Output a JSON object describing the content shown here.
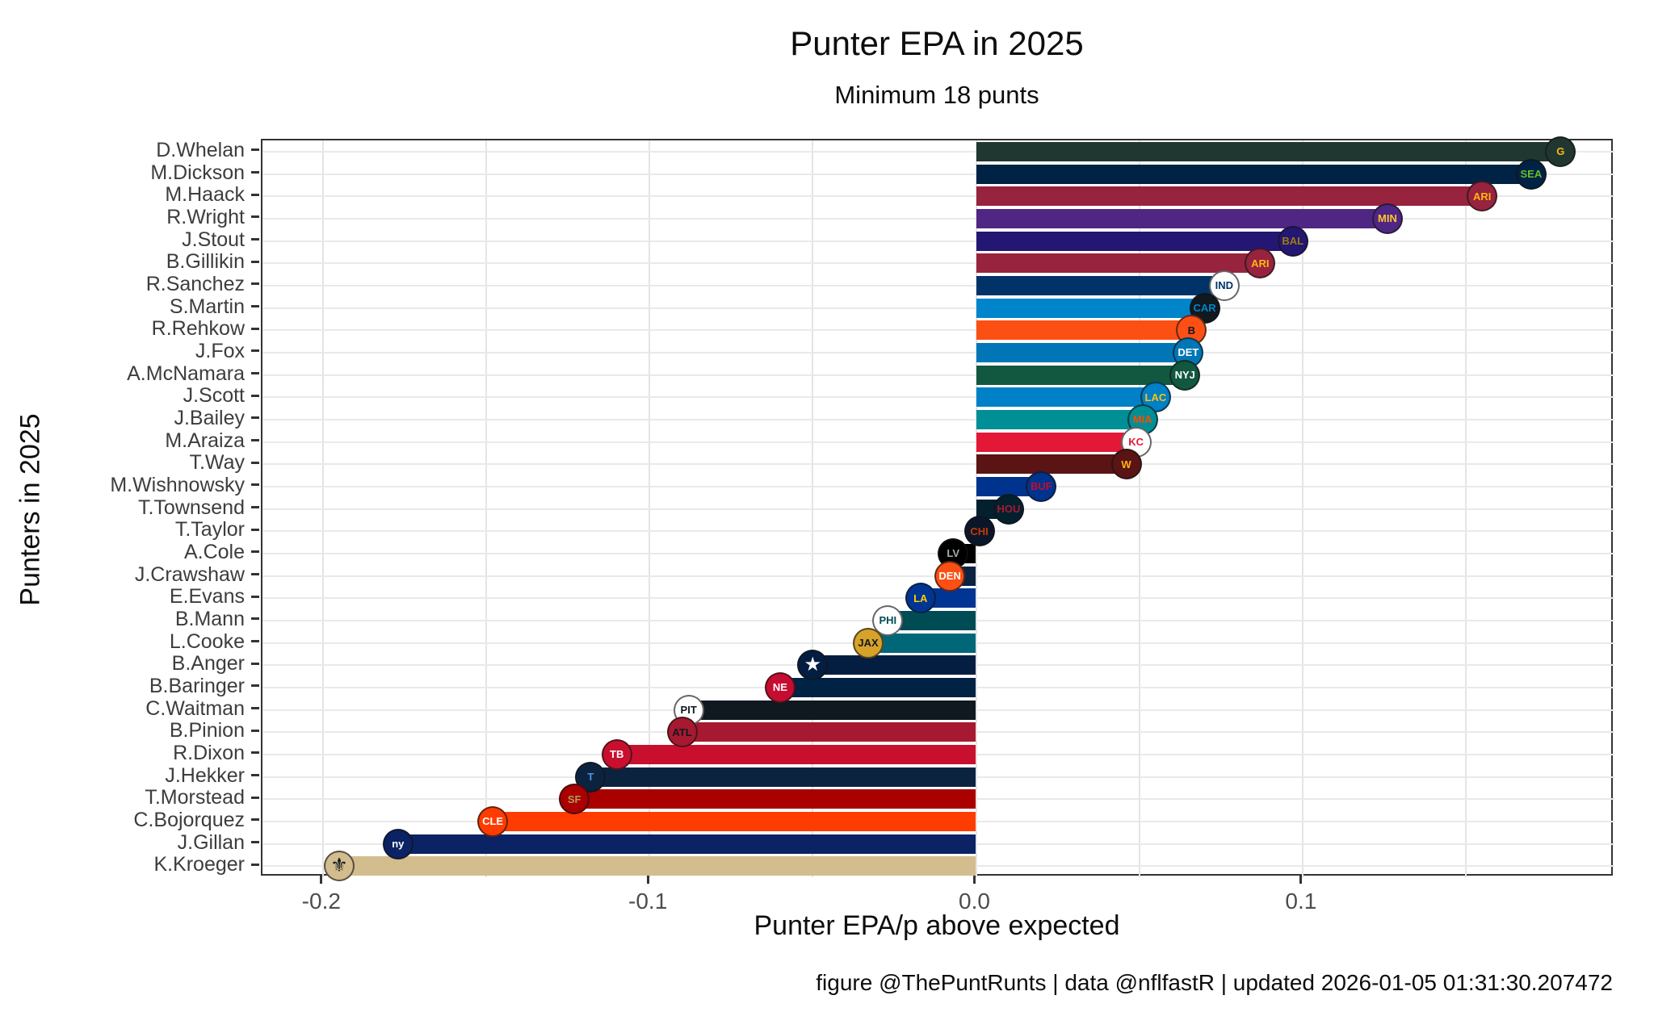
{
  "title": "Punter EPA in 2025",
  "subtitle": "Minimum 18 punts",
  "xlabel": "Punter EPA/p above expected",
  "ylabel": "Punters in 2025",
  "caption": "figure @ThePuntRunts | data @nflfastR | updated 2026-01-05 01:31:30.207472",
  "chart_data": {
    "type": "bar",
    "orientation": "horizontal",
    "title": "Punter EPA in 2025",
    "subtitle": "Minimum 18 punts",
    "xlabel": "Punter EPA/p above expected",
    "ylabel": "Punters in 2025",
    "xlim": [
      -0.2185,
      0.1955
    ],
    "x_major_ticks": [
      -0.2,
      -0.1,
      0.0,
      0.1
    ],
    "x_tick_labels": [
      "-0.2",
      "-0.1",
      "0.0",
      "0.1"
    ],
    "x_gridlines": [
      -0.2,
      -0.15,
      -0.1,
      -0.05,
      0.0,
      0.05,
      0.1,
      0.15
    ],
    "grid": "on",
    "legend": "none",
    "series": [
      {
        "name": "D.Whelan",
        "team": "GB",
        "logo": "packers-logo",
        "abbr": "G",
        "value": 0.179,
        "bar_color": "#203731",
        "badge_bg": "#203731",
        "badge_fg": "#FFB612"
      },
      {
        "name": "M.Dickson",
        "team": "SEA",
        "logo": "seahawks-logo",
        "abbr": "SEA",
        "value": 0.17,
        "bar_color": "#002244",
        "badge_bg": "#002244",
        "badge_fg": "#69BE28"
      },
      {
        "name": "M.Haack",
        "team": "ARI",
        "logo": "cardinals-logo",
        "abbr": "ARI",
        "value": 0.155,
        "bar_color": "#97233F",
        "badge_bg": "#97233F",
        "badge_fg": "#FFB612"
      },
      {
        "name": "R.Wright",
        "team": "MIN",
        "logo": "vikings-logo",
        "abbr": "MIN",
        "value": 0.126,
        "bar_color": "#4F2683",
        "badge_bg": "#4F2683",
        "badge_fg": "#FFC62F"
      },
      {
        "name": "J.Stout",
        "team": "BAL",
        "logo": "ravens-logo",
        "abbr": "BAL",
        "value": 0.097,
        "bar_color": "#241773",
        "badge_bg": "#241773",
        "badge_fg": "#9E7C0C"
      },
      {
        "name": "B.Gillikin",
        "team": "ARI",
        "logo": "cardinals-logo",
        "abbr": "ARI",
        "value": 0.087,
        "bar_color": "#97233F",
        "badge_bg": "#97233F",
        "badge_fg": "#FFB612"
      },
      {
        "name": "R.Sanchez",
        "team": "IND",
        "logo": "colts-logo",
        "abbr": "IND",
        "value": 0.076,
        "bar_color": "#013369",
        "badge_bg": "#FFFFFF",
        "badge_fg": "#013369"
      },
      {
        "name": "S.Martin",
        "team": "CAR",
        "logo": "panthers-logo",
        "abbr": "CAR",
        "value": 0.07,
        "bar_color": "#0085CA",
        "badge_bg": "#101820",
        "badge_fg": "#0085CA"
      },
      {
        "name": "R.Rehkow",
        "team": "CIN",
        "logo": "bengals-logo",
        "abbr": "B",
        "value": 0.066,
        "bar_color": "#FB4F14",
        "badge_bg": "#FB4F14",
        "badge_fg": "#101820"
      },
      {
        "name": "J.Fox",
        "team": "DET",
        "logo": "lions-logo",
        "abbr": "DET",
        "value": 0.065,
        "bar_color": "#0076B6",
        "badge_bg": "#0076B6",
        "badge_fg": "#FFFFFF"
      },
      {
        "name": "A.McNamara",
        "team": "NYJ",
        "logo": "jets-logo",
        "abbr": "NYJ",
        "value": 0.064,
        "bar_color": "#125740",
        "badge_bg": "#125740",
        "badge_fg": "#FFFFFF"
      },
      {
        "name": "J.Scott",
        "team": "LAC",
        "logo": "chargers-logo",
        "abbr": "LAC",
        "value": 0.055,
        "bar_color": "#0080C6",
        "badge_bg": "#0080C6",
        "badge_fg": "#FFC20E"
      },
      {
        "name": "J.Bailey",
        "team": "MIA",
        "logo": "dolphins-logo",
        "abbr": "MIA",
        "value": 0.051,
        "bar_color": "#008E97",
        "badge_bg": "#008E97",
        "badge_fg": "#FC4C02"
      },
      {
        "name": "M.Araiza",
        "team": "KC",
        "logo": "chiefs-logo",
        "abbr": "KC",
        "value": 0.049,
        "bar_color": "#E31837",
        "badge_bg": "#FFFFFF",
        "badge_fg": "#E31837"
      },
      {
        "name": "T.Way",
        "team": "WAS",
        "logo": "commanders-logo",
        "abbr": "W",
        "value": 0.046,
        "bar_color": "#5A1414",
        "badge_bg": "#5A1414",
        "badge_fg": "#FFB612"
      },
      {
        "name": "M.Wishnowsky",
        "team": "BUF",
        "logo": "bills-logo",
        "abbr": "BUF",
        "value": 0.02,
        "bar_color": "#00338D",
        "badge_bg": "#00338D",
        "badge_fg": "#C60C30"
      },
      {
        "name": "T.Townsend",
        "team": "HOU",
        "logo": "texans-logo",
        "abbr": "HOU",
        "value": 0.01,
        "bar_color": "#03202F",
        "badge_bg": "#03202F",
        "badge_fg": "#A71930"
      },
      {
        "name": "T.Taylor",
        "team": "CHI",
        "logo": "bears-logo",
        "abbr": "CHI",
        "value": 0.001,
        "bar_color": "#0B162A",
        "badge_bg": "#0B162A",
        "badge_fg": "#C83803"
      },
      {
        "name": "A.Cole",
        "team": "LV",
        "logo": "raiders-logo",
        "abbr": "LV",
        "value": -0.007,
        "bar_color": "#000000",
        "badge_bg": "#000000",
        "badge_fg": "#A5ACAF"
      },
      {
        "name": "J.Crawshaw",
        "team": "DEN",
        "logo": "broncos-logo",
        "abbr": "DEN",
        "value": -0.008,
        "bar_color": "#0A2343",
        "badge_bg": "#FB4F14",
        "badge_fg": "#FFFFFF"
      },
      {
        "name": "E.Evans",
        "team": "LAR",
        "logo": "rams-logo",
        "abbr": "LA",
        "value": -0.017,
        "bar_color": "#003594",
        "badge_bg": "#003594",
        "badge_fg": "#FFD100"
      },
      {
        "name": "B.Mann",
        "team": "PHI",
        "logo": "eagles-logo",
        "abbr": "PHI",
        "value": -0.027,
        "bar_color": "#004C54",
        "badge_bg": "#FFFFFF",
        "badge_fg": "#004C54"
      },
      {
        "name": "L.Cooke",
        "team": "JAX",
        "logo": "jaguars-logo",
        "abbr": "JAX",
        "value": -0.033,
        "bar_color": "#006778",
        "badge_bg": "#D7A22A",
        "badge_fg": "#101820"
      },
      {
        "name": "B.Anger",
        "team": "DAL",
        "logo": "cowboys-logo",
        "abbr": "★",
        "value": -0.05,
        "bar_color": "#041E42",
        "badge_bg": "#041E42",
        "badge_fg": "#FFFFFF"
      },
      {
        "name": "B.Baringer",
        "team": "NE",
        "logo": "patriots-logo",
        "abbr": "NE",
        "value": -0.06,
        "bar_color": "#002244",
        "badge_bg": "#C60C30",
        "badge_fg": "#FFFFFF"
      },
      {
        "name": "C.Waitman",
        "team": "PIT",
        "logo": "steelers-logo",
        "abbr": "PIT",
        "value": -0.088,
        "bar_color": "#101820",
        "badge_bg": "#FFFFFF",
        "badge_fg": "#101820"
      },
      {
        "name": "B.Pinion",
        "team": "ATL",
        "logo": "falcons-logo",
        "abbr": "ATL",
        "value": -0.09,
        "bar_color": "#A71930",
        "badge_bg": "#A71930",
        "badge_fg": "#101820"
      },
      {
        "name": "R.Dixon",
        "team": "TB",
        "logo": "buccaneers-logo",
        "abbr": "TB",
        "value": -0.11,
        "bar_color": "#C8102E",
        "badge_bg": "#C8102E",
        "badge_fg": "#FFFFFF"
      },
      {
        "name": "J.Hekker",
        "team": "TEN",
        "logo": "titans-logo",
        "abbr": "T",
        "value": -0.118,
        "bar_color": "#0C2340",
        "badge_bg": "#0C2340",
        "badge_fg": "#4B92DB"
      },
      {
        "name": "T.Morstead",
        "team": "SF",
        "logo": "49ers-logo",
        "abbr": "SF",
        "value": -0.123,
        "bar_color": "#AA0000",
        "badge_bg": "#AA0000",
        "badge_fg": "#B3995D"
      },
      {
        "name": "C.Bojorquez",
        "team": "CLE",
        "logo": "browns-logo",
        "abbr": "CLE",
        "value": -0.148,
        "bar_color": "#FF3C00",
        "badge_bg": "#FF3C00",
        "badge_fg": "#FFFFFF"
      },
      {
        "name": "J.Gillan",
        "team": "NYG",
        "logo": "giants-logo",
        "abbr": "ny",
        "value": -0.177,
        "bar_color": "#0B2265",
        "badge_bg": "#0B2265",
        "badge_fg": "#FFFFFF"
      },
      {
        "name": "K.Kroeger",
        "team": "NO",
        "logo": "saints-logo",
        "abbr": "⚜",
        "value": -0.195,
        "bar_color": "#D3BC8D",
        "badge_bg": "#D3BC8D",
        "badge_fg": "#101820"
      }
    ]
  }
}
